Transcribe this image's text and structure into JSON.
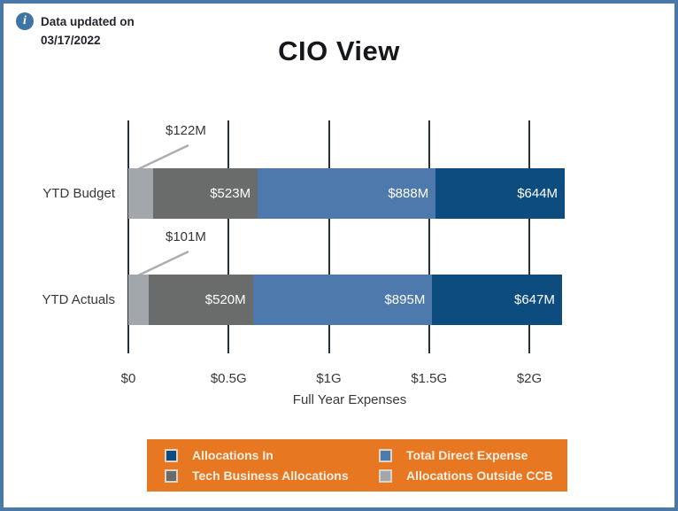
{
  "page": {
    "note": {
      "icon": "info-icon",
      "line1": "Data updated on",
      "line2": "03/17/2022"
    },
    "title": "CIO View"
  },
  "chart_data": {
    "type": "bar",
    "orientation": "horizontal",
    "stacked": true,
    "title": "CIO View",
    "categories": [
      "YTD Budget",
      "YTD Actuals"
    ],
    "series": [
      {
        "name": "Allocations Outside CCB",
        "color": "#a3a7ac",
        "values": [
          122,
          101
        ],
        "labels": [
          "$122M",
          "$101M"
        ],
        "label_style": "callout"
      },
      {
        "name": "Tech Business Allocations",
        "color": "#6a6c6c",
        "values": [
          523,
          520
        ],
        "labels": [
          "$523M",
          "$520M"
        ],
        "label_style": "inside"
      },
      {
        "name": "Total Direct Expense",
        "color": "#4d79ac",
        "values": [
          888,
          895
        ],
        "labels": [
          "$888M",
          "$895M"
        ],
        "label_style": "inside"
      },
      {
        "name": "Allocations In",
        "color": "#0d4c7e",
        "values": [
          644,
          647
        ],
        "labels": [
          "$644M",
          "$647M"
        ],
        "label_style": "inside"
      }
    ],
    "xlabel": "Full Year Expenses",
    "x_ticks": [
      "$0",
      "$0.5G",
      "$1G",
      "$1.5G",
      "$2G"
    ],
    "x_tick_values": [
      0,
      500,
      1000,
      1500,
      2000
    ],
    "xlim": [
      0,
      2000
    ],
    "unit_note": "values in $M, axis in $G",
    "grid": "vertical",
    "colors": {
      "gridline": "#272f3b",
      "callout_line": "#abaeb3"
    },
    "legend": {
      "position": "bottom",
      "background": "#e87722",
      "items": [
        {
          "label": "Allocations In",
          "color": "#0d4c7e"
        },
        {
          "label": "Total Direct Expense",
          "color": "#4d79ac"
        },
        {
          "label": "Tech Business Allocations",
          "color": "#6a6c6c"
        },
        {
          "label": "Allocations Outside CCB",
          "color": "#a3a7ac"
        }
      ]
    }
  }
}
